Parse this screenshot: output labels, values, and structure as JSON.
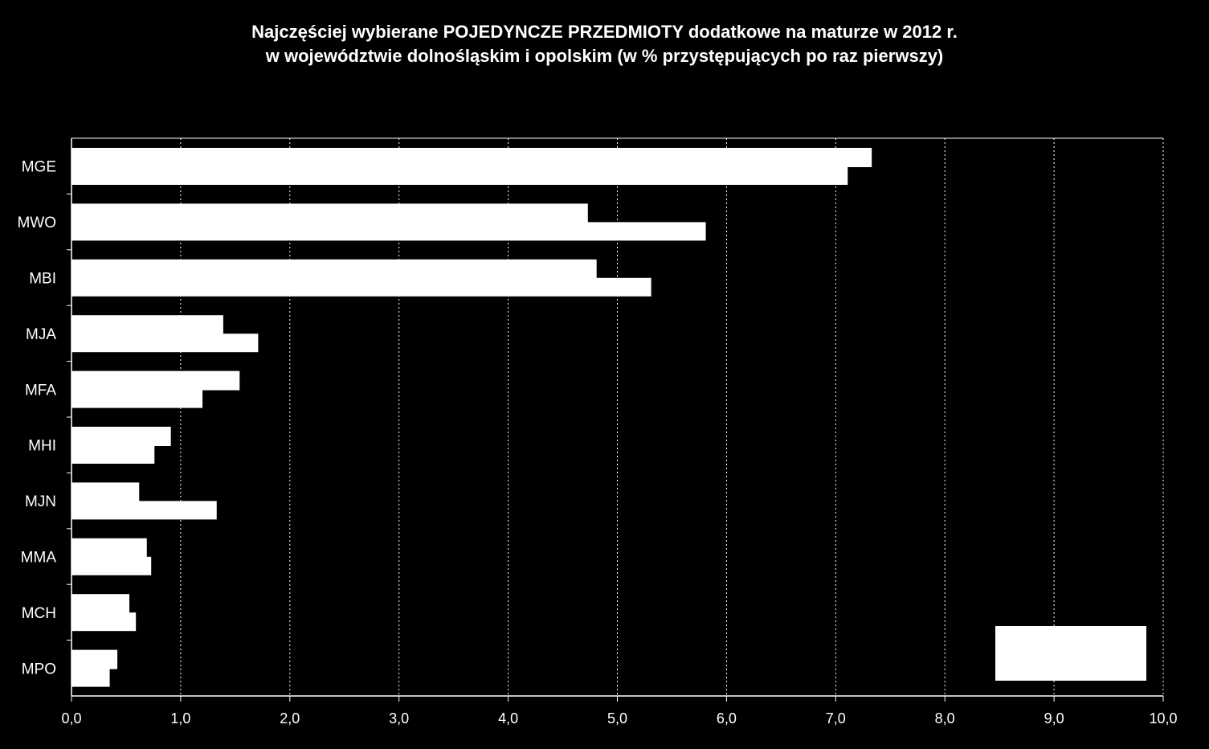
{
  "chart_data": {
    "type": "bar",
    "orientation": "horizontal",
    "title": "Najczęściej wybierane POJEDYNCZE PRZEDMIOTY dodatkowe na maturze w 2012 r.",
    "subtitle": "w województwie dolnośląskim  i opolskim (w %  przystępujących po raz pierwszy)",
    "categories": [
      "MGE",
      "MWO",
      "MBI",
      "MJA",
      "MFA",
      "MHI",
      "MJN",
      "MMA",
      "MCH",
      "MPO"
    ],
    "series": [
      {
        "values": [
          7.33,
          4.73,
          4.81,
          1.39,
          1.54,
          0.91,
          0.62,
          0.69,
          0.53,
          0.42
        ]
      },
      {
        "values": [
          7.11,
          5.81,
          5.31,
          1.71,
          1.2,
          0.76,
          1.33,
          0.73,
          0.59,
          0.35
        ]
      }
    ],
    "xlim": [
      0,
      10
    ],
    "xticks": [
      "0,0",
      "1,0",
      "2,0",
      "3,0",
      "4,0",
      "5,0",
      "6,0",
      "7,0",
      "8,0",
      "9,0",
      "10,0"
    ],
    "grid": "vertical dotted",
    "legend": "bottom-right",
    "colors": {
      "background": "#000000",
      "bars": "#ffffff",
      "grid": "#ffffff",
      "text": "#ffffff"
    }
  }
}
